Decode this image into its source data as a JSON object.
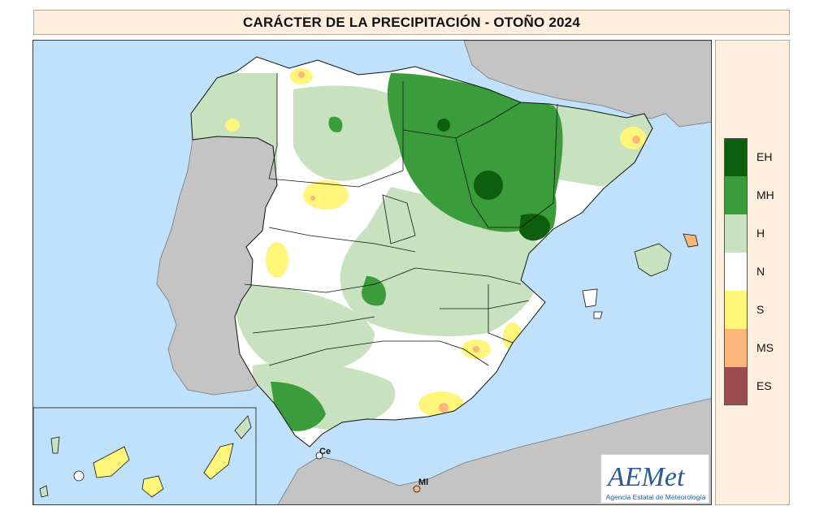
{
  "title": "CARÁCTER DE LA PRECIPITACIÓN - OTOÑO 2024",
  "legend": [
    {
      "code": "EH",
      "color": "#0d5e0d"
    },
    {
      "code": "MH",
      "color": "#3a9c3a"
    },
    {
      "code": "H",
      "color": "#c8e1bf"
    },
    {
      "code": "N",
      "color": "#ffffff"
    },
    {
      "code": "S",
      "color": "#fff57a"
    },
    {
      "code": "MS",
      "color": "#fcb67a"
    },
    {
      "code": "ES",
      "color": "#9c4c4c"
    }
  ],
  "cities": {
    "ceuta": "Ce",
    "melilla": "Ml"
  },
  "logo": {
    "brand": "AEMet",
    "subtitle": "Agencia Estatal de Meteorología"
  },
  "colors": {
    "sea": "#bfe1fb",
    "land_outside": "#c4c4c4",
    "border": "#111111"
  }
}
